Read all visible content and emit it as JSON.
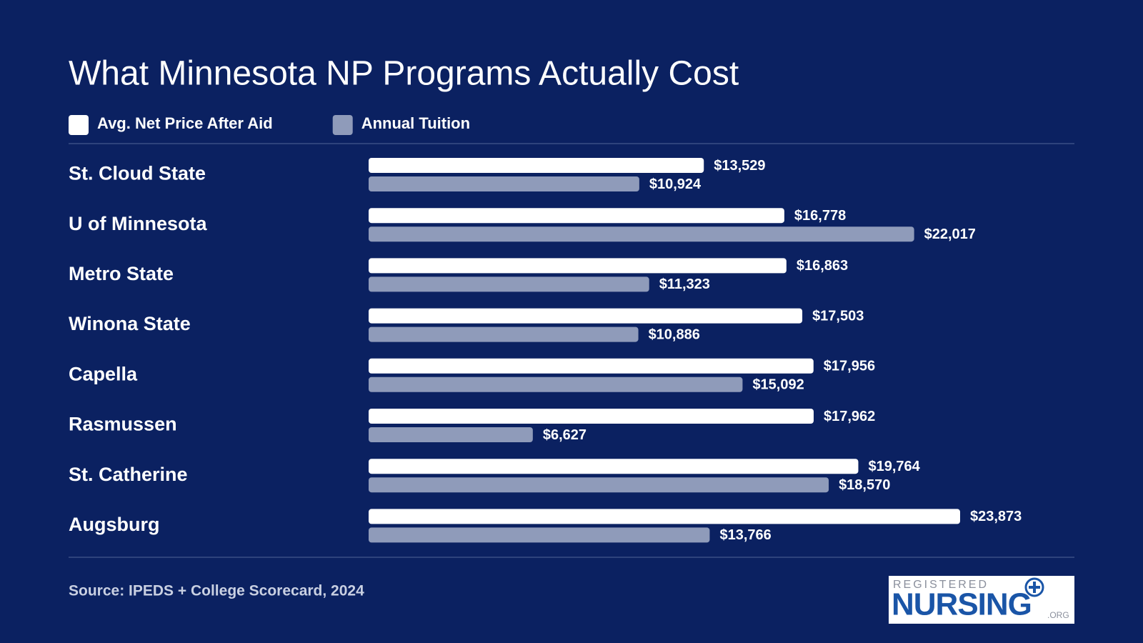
{
  "chart_data": {
    "type": "bar",
    "orientation": "horizontal",
    "title": "What Minnesota NP Programs Actually Cost",
    "categories": [
      "St. Cloud State",
      "U of Minnesota",
      "Metro State",
      "Winona State",
      "Capella",
      "Rasmussen",
      "St. Catherine",
      "Augsburg"
    ],
    "series": [
      {
        "name": "Avg. Net Price After Aid",
        "color": "#ffffff",
        "values": [
          13529,
          16778,
          16863,
          17503,
          17956,
          17962,
          19764,
          23873
        ],
        "value_labels": [
          "$13,529",
          "$16,778",
          "$16,863",
          "$17,503",
          "$17,956",
          "$17,962",
          "$19,764",
          "$23,873"
        ]
      },
      {
        "name": "Annual Tuition",
        "color": "#8f9bba",
        "values": [
          10924,
          22017,
          11323,
          10886,
          15092,
          6627,
          18570,
          13766
        ],
        "value_labels": [
          "$10,924",
          "$22,017",
          "$11,323",
          "$10,886",
          "$15,092",
          "$6,627",
          "$18,570",
          "$13,766"
        ]
      }
    ],
    "source": "Source: IPEDS + College Scorecard, 2024"
  },
  "logo": {
    "top": "REGISTERED",
    "main": "NURSING",
    "suffix": ".ORG"
  }
}
